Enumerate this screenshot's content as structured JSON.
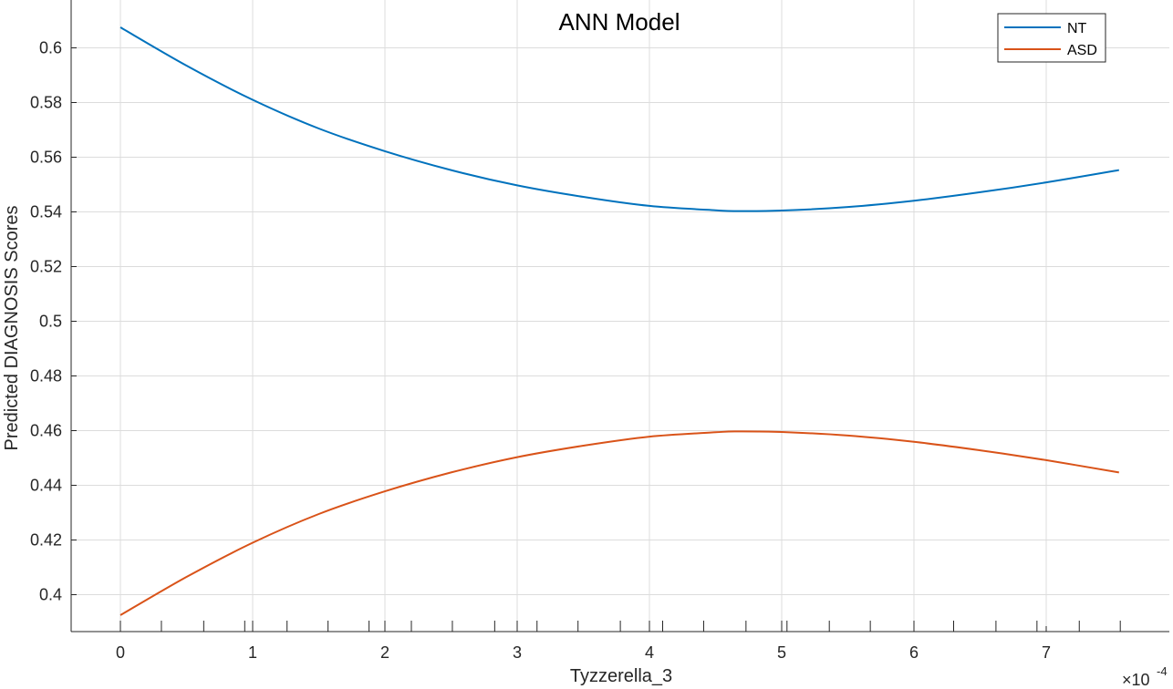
{
  "chart_data": {
    "type": "line",
    "title": "ANN Model",
    "xlabel": "Tyzzerella_3",
    "ylabel": "Predicted DIAGNOSIS Scores",
    "x_exponent_base": "×10",
    "x_exponent_power": "-4",
    "xlim": [
      -0.37,
      7.93
    ],
    "ylim": [
      0.3865,
      0.6175
    ],
    "x_ticks": [
      0,
      1,
      2,
      3,
      4,
      5,
      6,
      7
    ],
    "x_tick_labels": [
      "0",
      "1",
      "2",
      "3",
      "4",
      "5",
      "6",
      "7"
    ],
    "y_ticks": [
      0.4,
      0.42,
      0.44,
      0.46,
      0.48,
      0.5,
      0.52,
      0.54,
      0.56,
      0.58,
      0.6
    ],
    "y_tick_labels": [
      "0.4",
      "0.42",
      "0.44",
      "0.46",
      "0.48",
      "0.5",
      "0.52",
      "0.54",
      "0.56",
      "0.58",
      "0.6"
    ],
    "grid": true,
    "legend_position": "top-right",
    "rug_x": [
      0,
      0.31,
      0.63,
      0.94,
      1.0,
      1.26,
      1.57,
      1.88,
      2.0,
      2.2,
      2.51,
      2.83,
      3.0,
      3.15,
      3.46,
      3.78,
      4.0,
      4.1,
      4.41,
      4.73,
      5.0,
      5.04,
      5.36,
      5.67,
      6.0,
      6.3,
      6.62,
      6.93,
      7.25,
      7.56
    ],
    "series": [
      {
        "name": "NT",
        "color": "#0072BD",
        "x": [
          0,
          0.5,
          1,
          1.5,
          2,
          2.5,
          3,
          3.5,
          4,
          4.5,
          4.66,
          5,
          5.5,
          6,
          6.5,
          7,
          7.55
        ],
        "y": [
          0.6075,
          0.5935,
          0.581,
          0.5705,
          0.5622,
          0.5553,
          0.5497,
          0.5455,
          0.5422,
          0.5406,
          0.5403,
          0.5405,
          0.5418,
          0.5441,
          0.5472,
          0.5508,
          0.5553
        ]
      },
      {
        "name": "ASD",
        "color": "#D95319",
        "x": [
          0,
          0.5,
          1,
          1.5,
          2,
          2.5,
          3,
          3.5,
          4,
          4.5,
          4.66,
          5,
          5.5,
          6,
          6.5,
          7,
          7.55
        ],
        "y": [
          0.3925,
          0.4065,
          0.419,
          0.4295,
          0.4378,
          0.4447,
          0.4503,
          0.4545,
          0.4578,
          0.4594,
          0.4597,
          0.4595,
          0.4582,
          0.4559,
          0.4528,
          0.4492,
          0.4447
        ]
      }
    ]
  }
}
